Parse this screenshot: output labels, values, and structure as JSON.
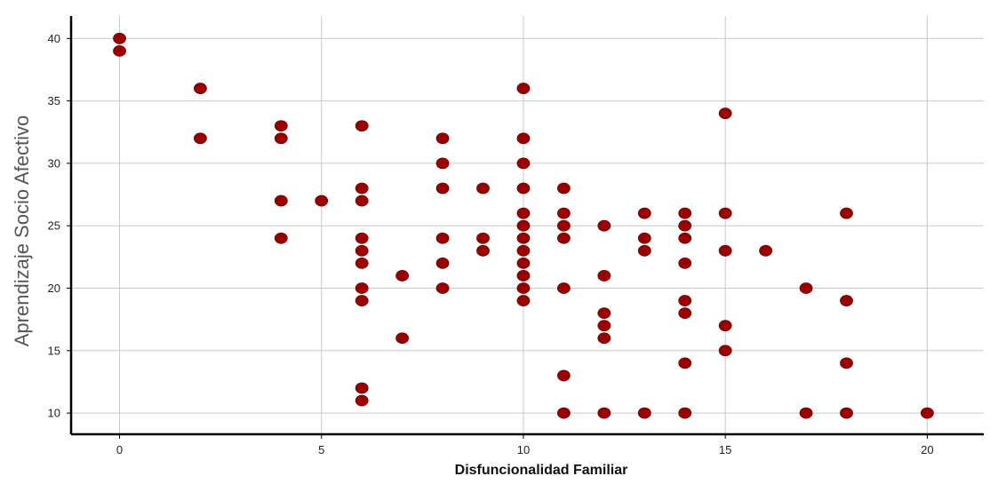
{
  "chart_data": {
    "type": "scatter",
    "title": "",
    "xlabel": "Disfuncionalidad Familiar",
    "ylabel": "Aprendizaje Socio Afectivo",
    "xlim": [
      -1.2,
      21.4
    ],
    "ylim": [
      8.3,
      41.8
    ],
    "x_ticks": [
      0,
      5,
      10,
      15,
      20
    ],
    "y_ticks": [
      10,
      15,
      20,
      25,
      30,
      35,
      40
    ],
    "grid": true,
    "marker_color": "#9B0000",
    "points": [
      {
        "x": 0,
        "y": 40
      },
      {
        "x": 0,
        "y": 39
      },
      {
        "x": 2,
        "y": 36
      },
      {
        "x": 2,
        "y": 32
      },
      {
        "x": 4,
        "y": 33
      },
      {
        "x": 4,
        "y": 32
      },
      {
        "x": 4,
        "y": 27
      },
      {
        "x": 4,
        "y": 24
      },
      {
        "x": 5,
        "y": 27
      },
      {
        "x": 6,
        "y": 33
      },
      {
        "x": 6,
        "y": 28
      },
      {
        "x": 6,
        "y": 27
      },
      {
        "x": 6,
        "y": 24
      },
      {
        "x": 6,
        "y": 23
      },
      {
        "x": 6,
        "y": 22
      },
      {
        "x": 6,
        "y": 20
      },
      {
        "x": 6,
        "y": 19
      },
      {
        "x": 6,
        "y": 12
      },
      {
        "x": 6,
        "y": 11
      },
      {
        "x": 7,
        "y": 21
      },
      {
        "x": 7,
        "y": 16
      },
      {
        "x": 8,
        "y": 32
      },
      {
        "x": 8,
        "y": 30
      },
      {
        "x": 8,
        "y": 28
      },
      {
        "x": 8,
        "y": 24
      },
      {
        "x": 8,
        "y": 22
      },
      {
        "x": 8,
        "y": 20
      },
      {
        "x": 9,
        "y": 28
      },
      {
        "x": 9,
        "y": 24
      },
      {
        "x": 9,
        "y": 23
      },
      {
        "x": 10,
        "y": 36
      },
      {
        "x": 10,
        "y": 32
      },
      {
        "x": 10,
        "y": 30
      },
      {
        "x": 10,
        "y": 28
      },
      {
        "x": 10,
        "y": 26
      },
      {
        "x": 10,
        "y": 25
      },
      {
        "x": 10,
        "y": 24
      },
      {
        "x": 10,
        "y": 23
      },
      {
        "x": 10,
        "y": 22
      },
      {
        "x": 10,
        "y": 21
      },
      {
        "x": 10,
        "y": 20
      },
      {
        "x": 10,
        "y": 19
      },
      {
        "x": 11,
        "y": 28
      },
      {
        "x": 11,
        "y": 26
      },
      {
        "x": 11,
        "y": 25
      },
      {
        "x": 11,
        "y": 24
      },
      {
        "x": 11,
        "y": 20
      },
      {
        "x": 11,
        "y": 13
      },
      {
        "x": 11,
        "y": 10
      },
      {
        "x": 12,
        "y": 25
      },
      {
        "x": 12,
        "y": 21
      },
      {
        "x": 12,
        "y": 18
      },
      {
        "x": 12,
        "y": 17
      },
      {
        "x": 12,
        "y": 16
      },
      {
        "x": 12,
        "y": 10
      },
      {
        "x": 13,
        "y": 26
      },
      {
        "x": 13,
        "y": 24
      },
      {
        "x": 13,
        "y": 23
      },
      {
        "x": 13,
        "y": 10
      },
      {
        "x": 14,
        "y": 26
      },
      {
        "x": 14,
        "y": 25
      },
      {
        "x": 14,
        "y": 24
      },
      {
        "x": 14,
        "y": 22
      },
      {
        "x": 14,
        "y": 19
      },
      {
        "x": 14,
        "y": 18
      },
      {
        "x": 14,
        "y": 14
      },
      {
        "x": 14,
        "y": 10
      },
      {
        "x": 15,
        "y": 34
      },
      {
        "x": 15,
        "y": 26
      },
      {
        "x": 15,
        "y": 23
      },
      {
        "x": 15,
        "y": 17
      },
      {
        "x": 15,
        "y": 15
      },
      {
        "x": 16,
        "y": 23
      },
      {
        "x": 17,
        "y": 20
      },
      {
        "x": 17,
        "y": 10
      },
      {
        "x": 18,
        "y": 26
      },
      {
        "x": 18,
        "y": 19
      },
      {
        "x": 18,
        "y": 14
      },
      {
        "x": 18,
        "y": 10
      },
      {
        "x": 20,
        "y": 10
      }
    ]
  }
}
